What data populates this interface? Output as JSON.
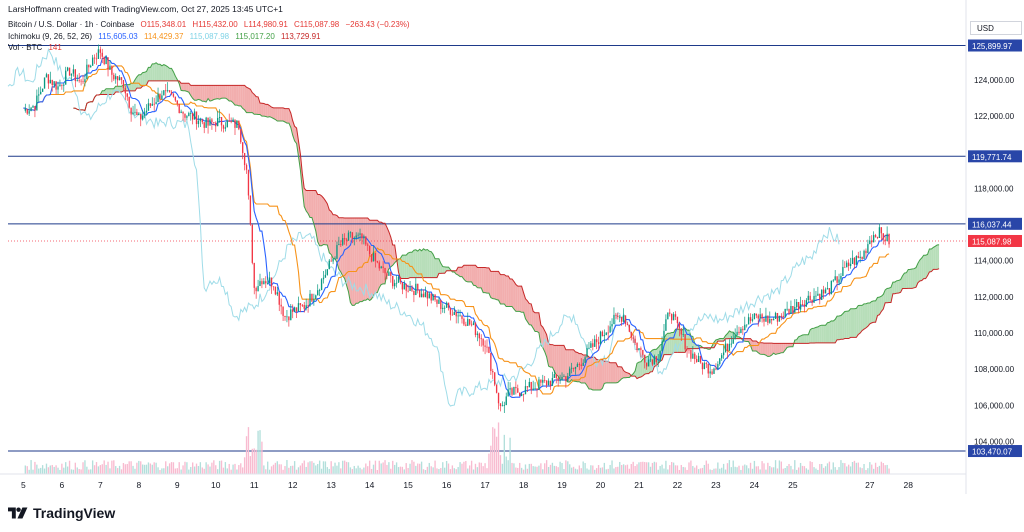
{
  "header": {
    "credit": "LarsHoffmann created with TradingView.com, Oct 27, 2025 13:45 UTC+1",
    "symbol": "Bitcoin / U.S. Dollar · 1h · Coinbase",
    "open": "O115,348.01",
    "high": "H115,432.00",
    "low": "L114,980.91",
    "close": "C115,087.98",
    "change": "−263.43 (−0.23%)",
    "ichimoku_label": "Ichimoku (9, 26, 52, 26)",
    "ichimoku_values": [
      "115,605.03",
      "114,429.37",
      "115,087.98",
      "115,017.20",
      "113,729.91"
    ],
    "vol_label": "Vol · BTC",
    "vol_value": "141"
  },
  "currency": "USD",
  "brand": "TradingView",
  "colors": {
    "candle_up": "#089981",
    "candle_down": "#f23645",
    "tenkan": "#2962ff",
    "kijun": "#f7931a",
    "chikou": "#9fdce8",
    "cloud_bull": "#a5d6a7",
    "cloud_bear": "#ef9a9a",
    "span_a": "#43a047",
    "span_b": "#c62828",
    "hline": "#1e3a8a",
    "price_tag": "#f23645"
  },
  "chart_data": {
    "type": "candlestick",
    "title": "Bitcoin / U.S. Dollar · 1h · Coinbase",
    "x_ticks": [
      "5",
      "6",
      "7",
      "8",
      "9",
      "10",
      "11",
      "12",
      "13",
      "14",
      "15",
      "16",
      "17",
      "18",
      "19",
      "20",
      "21",
      "22",
      "23",
      "24",
      "25",
      "27",
      "28"
    ],
    "x_tick_days": [
      5,
      6,
      7,
      8,
      9,
      10,
      11,
      12,
      13,
      14,
      15,
      16,
      17,
      18,
      19,
      20,
      21,
      22,
      23,
      24,
      25,
      27,
      28
    ],
    "x_range_days": [
      4.6,
      29.5
    ],
    "y_ticks": [
      "124,000.00",
      "122,000.00",
      "118,000.00",
      "114,000.00",
      "112,000.00",
      "110,000.00",
      "108,000.00",
      "106,000.00",
      "104,000.00"
    ],
    "y_tick_values": [
      124000,
      122000,
      118000,
      114000,
      112000,
      110000,
      108000,
      106000,
      104000
    ],
    "ylim": [
      102200,
      127200
    ],
    "horizontal_levels": [
      {
        "value": 125900,
        "label": "125,899.97"
      },
      {
        "value": 119771.74,
        "label": "119,771.74"
      },
      {
        "value": 116037.44,
        "label": "116,037.44"
      },
      {
        "value": 103470.07,
        "label": "103,470.07"
      }
    ],
    "last_price": {
      "value": 115087.98,
      "label": "115,087.98"
    },
    "price_path": [
      [
        5.0,
        122300
      ],
      [
        5.3,
        122600
      ],
      [
        5.6,
        124200
      ],
      [
        5.9,
        123600
      ],
      [
        6.2,
        124500
      ],
      [
        6.5,
        123800
      ],
      [
        6.8,
        125200
      ],
      [
        7.0,
        125600
      ],
      [
        7.3,
        124300
      ],
      [
        7.6,
        123800
      ],
      [
        7.8,
        122400
      ],
      [
        8.0,
        121800
      ],
      [
        8.3,
        122600
      ],
      [
        8.6,
        123300
      ],
      [
        8.9,
        122900
      ],
      [
        9.2,
        122100
      ],
      [
        9.5,
        121900
      ],
      [
        9.8,
        121500
      ],
      [
        10.0,
        121700
      ],
      [
        10.3,
        121600
      ],
      [
        10.6,
        121500
      ],
      [
        10.8,
        119000
      ],
      [
        11.0,
        112500
      ],
      [
        11.2,
        113000
      ],
      [
        11.5,
        112800
      ],
      [
        11.8,
        110900
      ],
      [
        12.0,
        111200
      ],
      [
        12.3,
        111500
      ],
      [
        12.6,
        112300
      ],
      [
        12.9,
        113500
      ],
      [
        13.2,
        114800
      ],
      [
        13.5,
        115300
      ],
      [
        13.8,
        115200
      ],
      [
        14.0,
        114400
      ],
      [
        14.3,
        113500
      ],
      [
        14.6,
        112900
      ],
      [
        14.9,
        112600
      ],
      [
        15.2,
        112400
      ],
      [
        15.5,
        112100
      ],
      [
        15.8,
        111600
      ],
      [
        16.1,
        111300
      ],
      [
        16.4,
        110900
      ],
      [
        16.7,
        110300
      ],
      [
        17.0,
        109500
      ],
      [
        17.2,
        107800
      ],
      [
        17.4,
        105800
      ],
      [
        17.6,
        106600
      ],
      [
        17.9,
        106800
      ],
      [
        18.2,
        107000
      ],
      [
        18.5,
        107200
      ],
      [
        18.8,
        107400
      ],
      [
        19.1,
        107600
      ],
      [
        19.4,
        108200
      ],
      [
        19.7,
        109000
      ],
      [
        20.0,
        109800
      ],
      [
        20.3,
        110600
      ],
      [
        20.6,
        111000
      ],
      [
        20.9,
        109400
      ],
      [
        21.2,
        108500
      ],
      [
        21.5,
        108700
      ],
      [
        21.8,
        111300
      ],
      [
        22.0,
        110300
      ],
      [
        22.3,
        109000
      ],
      [
        22.6,
        108300
      ],
      [
        22.9,
        108000
      ],
      [
        23.2,
        108900
      ],
      [
        23.5,
        110100
      ],
      [
        23.8,
        110600
      ],
      [
        24.1,
        110900
      ],
      [
        24.4,
        110700
      ],
      [
        24.7,
        111000
      ],
      [
        25.0,
        111400
      ],
      [
        25.3,
        111800
      ],
      [
        25.6,
        112100
      ],
      [
        25.9,
        112300
      ],
      [
        26.2,
        113100
      ],
      [
        26.5,
        113900
      ],
      [
        26.8,
        114200
      ],
      [
        27.0,
        115200
      ],
      [
        27.2,
        115600
      ],
      [
        27.5,
        115088
      ]
    ]
  }
}
